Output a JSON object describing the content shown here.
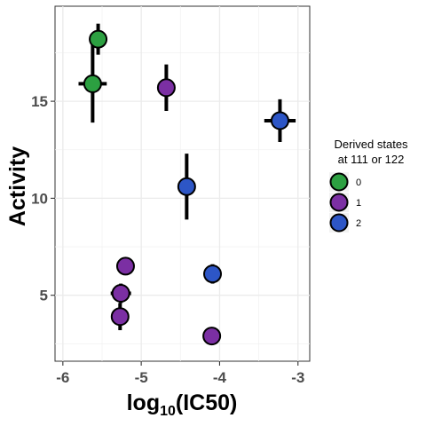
{
  "chart_data": {
    "type": "scatter",
    "title": "",
    "xlabel": "log",
    "xlabel_sub": "10",
    "xlabel_suffix": "(IC50)",
    "ylabel": "Activity",
    "xlim": [
      -6.1,
      -2.85
    ],
    "ylim": [
      1.6,
      19.9
    ],
    "xticks": [
      -6,
      -5,
      -4,
      -3
    ],
    "xtick_labels": [
      "-6",
      "-5",
      "-4",
      "-3"
    ],
    "yticks": [
      5,
      10,
      15
    ],
    "ytick_labels": [
      "5",
      "10",
      "15"
    ],
    "grid": true,
    "legend": {
      "title_lines": [
        "Derived states",
        "at 111 or 122"
      ],
      "placement": "right",
      "entries": [
        {
          "label": "0",
          "color": "#2ca041"
        },
        {
          "label": "1",
          "color": "#7b2fa3"
        },
        {
          "label": "2",
          "color": "#2d56c6"
        }
      ]
    },
    "points": [
      {
        "x": -5.55,
        "y": 18.2,
        "group": "0",
        "xerr": 0.0,
        "yerr": 0.8
      },
      {
        "x": -5.62,
        "y": 15.9,
        "group": "0",
        "xerr": 0.18,
        "yerr": 2.0
      },
      {
        "x": -4.68,
        "y": 15.7,
        "group": "1",
        "xerr": 0.0,
        "yerr": 1.2
      },
      {
        "x": -5.2,
        "y": 6.5,
        "group": "1",
        "xerr": 0.0,
        "yerr": 0.4
      },
      {
        "x": -5.26,
        "y": 5.1,
        "group": "1",
        "xerr": 0.13,
        "yerr": 0.5
      },
      {
        "x": -5.27,
        "y": 3.9,
        "group": "1",
        "xerr": 0.1,
        "yerr": 0.7
      },
      {
        "x": -4.1,
        "y": 2.9,
        "group": "1",
        "xerr": 0.0,
        "yerr": 0.0
      },
      {
        "x": -3.23,
        "y": 14.0,
        "group": "2",
        "xerr": 0.2,
        "yerr": 1.1
      },
      {
        "x": -4.42,
        "y": 10.6,
        "group": "2",
        "xerr": 0.1,
        "yerr": 1.7
      },
      {
        "x": -4.09,
        "y": 6.1,
        "group": "2",
        "xerr": 0.0,
        "yerr": 0.5
      }
    ]
  }
}
